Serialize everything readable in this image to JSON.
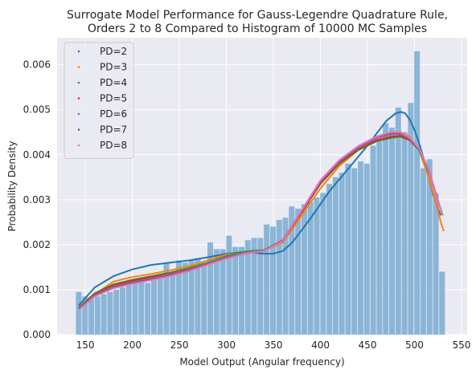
{
  "chart_data": {
    "type": "histogram+line",
    "title_line1": "Surrogate Model Performance for Gauss-Legendre Quadrature Rule,",
    "title_line2": "Orders 2 to 8 Compared to Histogram of 10000 MC Samples",
    "xlabel": "Model Output (Angular frequency)",
    "ylabel": "Probability Density",
    "xlim": [
      120,
      556
    ],
    "ylim": [
      0,
      0.0066
    ],
    "xticks": [
      150,
      200,
      250,
      300,
      350,
      400,
      450,
      500,
      550
    ],
    "yticks": [
      0.0,
      0.001,
      0.002,
      0.003,
      0.004,
      0.005,
      0.006
    ],
    "ytick_labels": [
      "0.000",
      "0.001",
      "0.002",
      "0.003",
      "0.004",
      "0.005",
      "0.006"
    ],
    "grid": true,
    "background": "#eaeaf2",
    "legend_position": "top-left",
    "histogram": {
      "color": "#7fafd4",
      "bin_start": 140,
      "bin_end": 533,
      "densities": [
        0.00095,
        0.00085,
        0.0008,
        0.00085,
        0.0009,
        0.00095,
        0.001,
        0.00105,
        0.0011,
        0.00115,
        0.0012,
        0.00115,
        0.0013,
        0.00135,
        0.0016,
        0.00135,
        0.00165,
        0.0016,
        0.00165,
        0.0017,
        0.0016,
        0.00205,
        0.0019,
        0.0019,
        0.0022,
        0.00195,
        0.00195,
        0.0021,
        0.00215,
        0.00215,
        0.00245,
        0.0024,
        0.00255,
        0.0026,
        0.00285,
        0.0028,
        0.0029,
        0.00295,
        0.00305,
        0.00315,
        0.00335,
        0.0035,
        0.0036,
        0.0038,
        0.0037,
        0.00385,
        0.0038,
        0.0042,
        0.0043,
        0.0047,
        0.0046,
        0.00505,
        0.0045,
        0.00515,
        0.0063,
        0.0037,
        0.0039,
        0.00315,
        0.0014
      ]
    },
    "series": [
      {
        "name": "PD=2",
        "color": "#1f77b4",
        "x": [
          143,
          160,
          180,
          200,
          220,
          240,
          260,
          280,
          300,
          320,
          340,
          350,
          360,
          370,
          380,
          390,
          400,
          410,
          420,
          430,
          440,
          450,
          460,
          470,
          480,
          486,
          490,
          495,
          500,
          505,
          510,
          515,
          520,
          525,
          528
        ],
        "y": [
          0.00065,
          0.00105,
          0.0013,
          0.00145,
          0.00155,
          0.0016,
          0.00165,
          0.00172,
          0.0018,
          0.00184,
          0.0018,
          0.0018,
          0.00186,
          0.00205,
          0.00232,
          0.0026,
          0.0029,
          0.0032,
          0.00345,
          0.0037,
          0.00395,
          0.0042,
          0.00448,
          0.00475,
          0.00492,
          0.00495,
          0.00492,
          0.00478,
          0.00455,
          0.00425,
          0.0039,
          0.0035,
          0.0031,
          0.0028,
          0.00265
        ]
      },
      {
        "name": "PD=3",
        "color": "#ff7f0e",
        "x": [
          143,
          160,
          180,
          200,
          220,
          240,
          260,
          280,
          300,
          320,
          340,
          360,
          380,
          400,
          420,
          440,
          460,
          475,
          485,
          495,
          505,
          515,
          522,
          528,
          531
        ],
        "y": [
          0.0006,
          0.0009,
          0.00118,
          0.00128,
          0.00135,
          0.00143,
          0.00152,
          0.00165,
          0.00178,
          0.00183,
          0.00187,
          0.00205,
          0.00265,
          0.00325,
          0.00375,
          0.0041,
          0.0044,
          0.0045,
          0.0045,
          0.0044,
          0.0041,
          0.0035,
          0.003,
          0.0025,
          0.0023
        ]
      },
      {
        "name": "PD=4",
        "color": "#2ca02c",
        "x": [
          143,
          160,
          180,
          200,
          220,
          240,
          260,
          280,
          300,
          320,
          340,
          360,
          380,
          400,
          420,
          440,
          460,
          475,
          485,
          495,
          505,
          515,
          522,
          530
        ],
        "y": [
          0.0006,
          0.00092,
          0.00112,
          0.00122,
          0.0013,
          0.00138,
          0.00148,
          0.0016,
          0.00175,
          0.00185,
          0.00188,
          0.0021,
          0.00272,
          0.00335,
          0.0038,
          0.0041,
          0.0043,
          0.00437,
          0.0044,
          0.00432,
          0.0041,
          0.00365,
          0.00315,
          0.00265
        ]
      },
      {
        "name": "PD=5",
        "color": "#d62728",
        "x": [
          143,
          160,
          180,
          200,
          220,
          240,
          260,
          280,
          300,
          320,
          340,
          360,
          380,
          400,
          420,
          440,
          460,
          475,
          485,
          495,
          505,
          515,
          522,
          530
        ],
        "y": [
          0.00058,
          0.0009,
          0.0011,
          0.0012,
          0.00128,
          0.00136,
          0.00146,
          0.00158,
          0.00172,
          0.00182,
          0.00186,
          0.00208,
          0.00272,
          0.00337,
          0.00382,
          0.00412,
          0.00432,
          0.0044,
          0.00442,
          0.00433,
          0.00412,
          0.00368,
          0.00318,
          0.00265
        ]
      },
      {
        "name": "PD=6",
        "color": "#9467bd",
        "x": [
          143,
          160,
          180,
          200,
          220,
          240,
          260,
          280,
          300,
          320,
          340,
          360,
          380,
          400,
          420,
          440,
          460,
          475,
          485,
          495,
          505,
          515,
          522,
          530
        ],
        "y": [
          0.00057,
          0.00088,
          0.00107,
          0.00117,
          0.00125,
          0.00134,
          0.00145,
          0.00158,
          0.00172,
          0.00182,
          0.00187,
          0.0021,
          0.00275,
          0.0034,
          0.00385,
          0.00415,
          0.00436,
          0.00445,
          0.00446,
          0.00435,
          0.00412,
          0.00366,
          0.00315,
          0.00265
        ]
      },
      {
        "name": "PD=7",
        "color": "#8c564b",
        "x": [
          143,
          160,
          180,
          200,
          220,
          240,
          260,
          280,
          300,
          320,
          340,
          360,
          380,
          400,
          420,
          440,
          460,
          475,
          485,
          495,
          505,
          515,
          522,
          530
        ],
        "y": [
          0.00056,
          0.00087,
          0.00105,
          0.00115,
          0.00123,
          0.00132,
          0.00143,
          0.00156,
          0.0017,
          0.0018,
          0.00186,
          0.00209,
          0.00276,
          0.00342,
          0.00387,
          0.00418,
          0.0044,
          0.00448,
          0.00448,
          0.00437,
          0.00413,
          0.00366,
          0.00315,
          0.00265
        ]
      },
      {
        "name": "PD=8",
        "color": "#e377c2",
        "x": [
          143,
          160,
          180,
          200,
          220,
          240,
          260,
          280,
          300,
          320,
          340,
          360,
          380,
          400,
          420,
          440,
          460,
          475,
          485,
          495,
          505,
          515,
          522,
          530
        ],
        "y": [
          0.00055,
          0.00085,
          0.00103,
          0.00113,
          0.00121,
          0.0013,
          0.00141,
          0.00155,
          0.00169,
          0.0018,
          0.00186,
          0.00208,
          0.00276,
          0.00343,
          0.00388,
          0.00419,
          0.00441,
          0.0045,
          0.0045,
          0.00438,
          0.00414,
          0.00367,
          0.00315,
          0.00265
        ]
      }
    ]
  }
}
